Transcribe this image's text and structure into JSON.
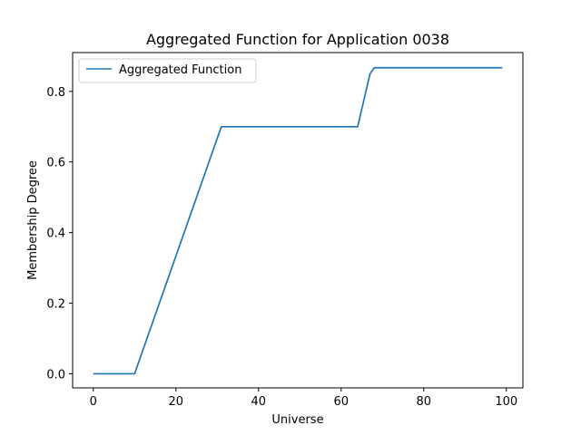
{
  "chart_data": {
    "type": "line",
    "title": "Aggregated Function for Application 0038",
    "xlabel": "Universe",
    "ylabel": "Membership Degree",
    "xlim": [
      -5,
      104
    ],
    "ylim": [
      -0.04,
      0.91
    ],
    "xticks": [
      0,
      20,
      40,
      60,
      80,
      100
    ],
    "xtick_labels": [
      "0",
      "20",
      "40",
      "60",
      "80",
      "100"
    ],
    "yticks": [
      0.0,
      0.2,
      0.4,
      0.6,
      0.8
    ],
    "ytick_labels": [
      "0.0",
      "0.2",
      "0.4",
      "0.6",
      "0.8"
    ],
    "grid": false,
    "legend_position": "upper left",
    "series": [
      {
        "name": "Aggregated Function",
        "color": "#1f77b4",
        "x": [
          0,
          10,
          31,
          64,
          67,
          68,
          99
        ],
        "y": [
          0.0,
          0.0,
          0.7,
          0.7,
          0.85,
          0.867,
          0.867
        ]
      }
    ]
  }
}
